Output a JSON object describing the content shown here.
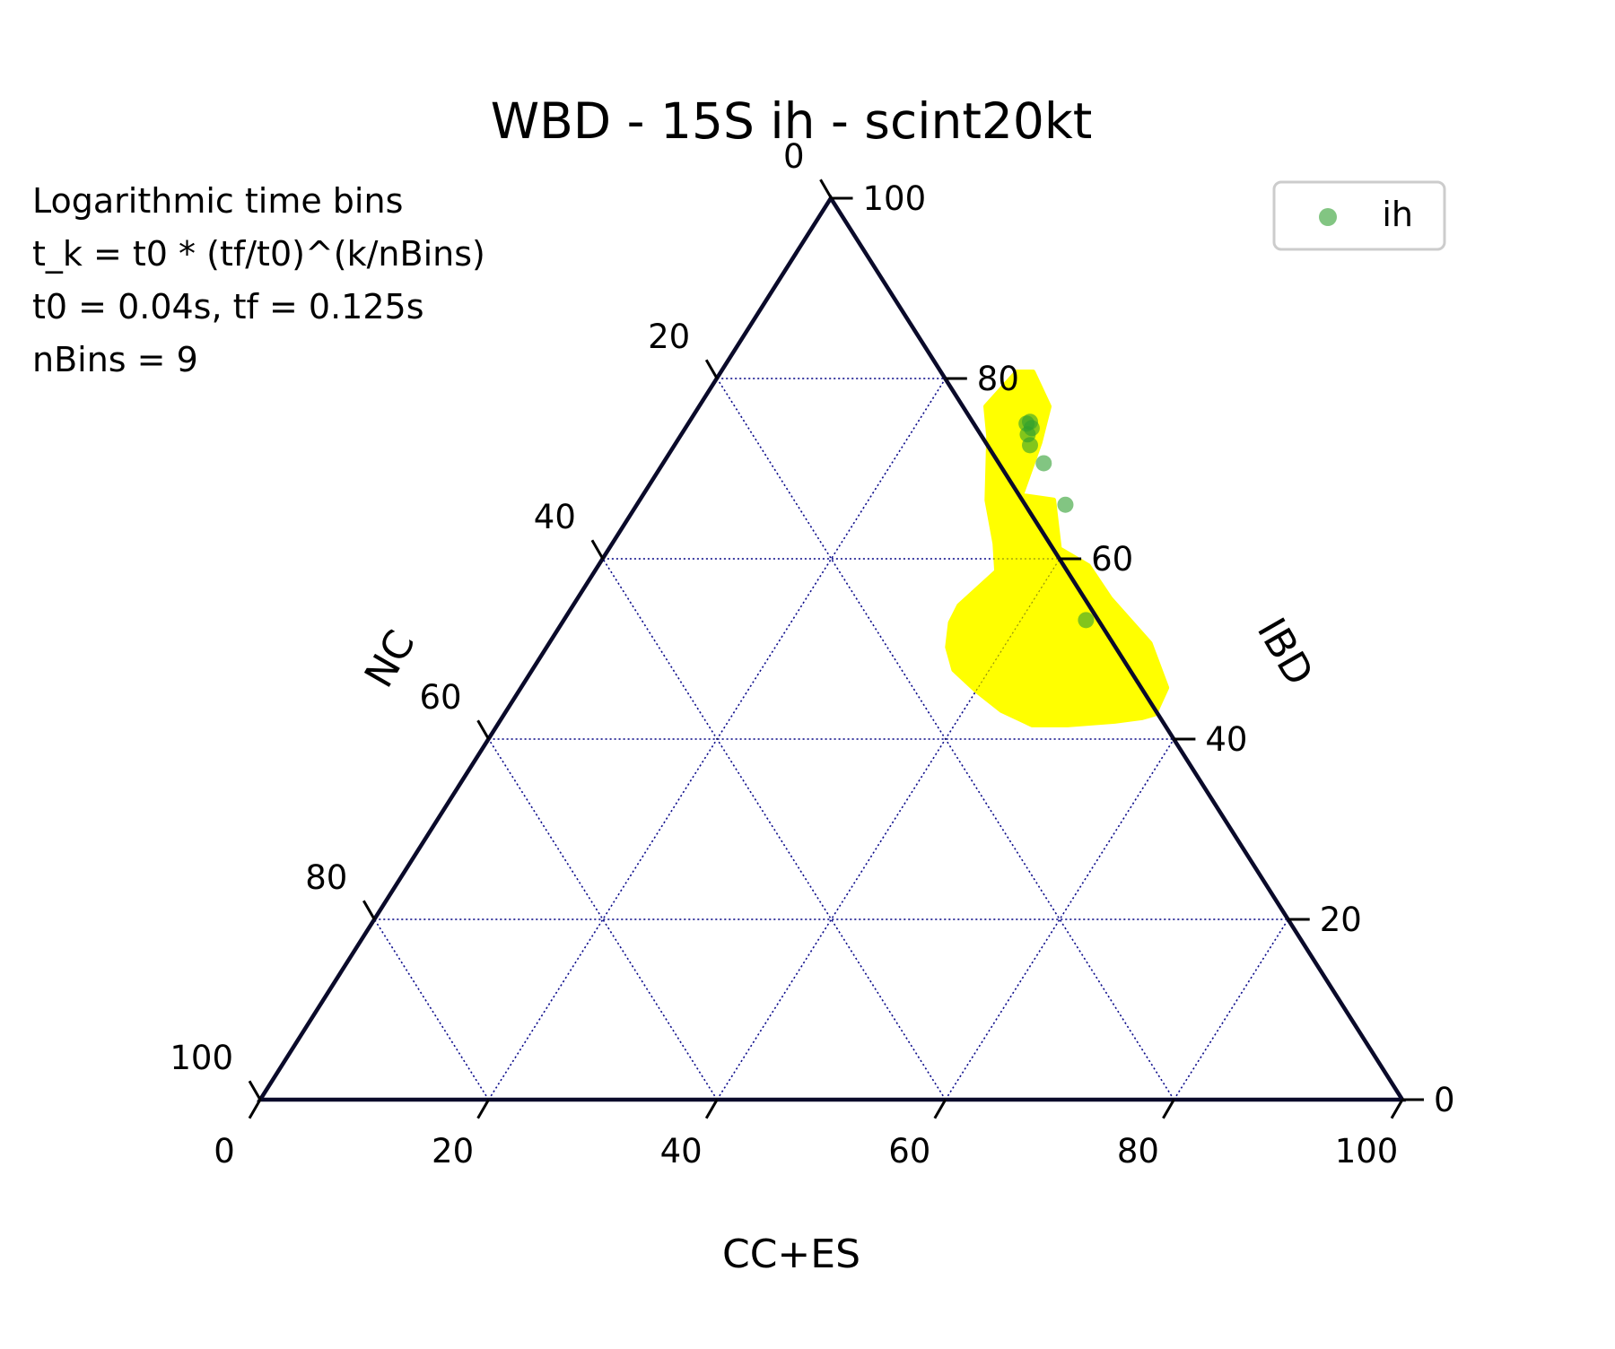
{
  "chart_data": {
    "type": "scatter",
    "subtype": "ternary",
    "title": "WBD - 15S ih - scint20kt",
    "axes": {
      "bottom": {
        "label": "CC+ES",
        "ticks": [
          "0",
          "20",
          "40",
          "60",
          "80",
          "100"
        ]
      },
      "right": {
        "label": "IBD",
        "ticks": [
          "0",
          "20",
          "40",
          "60",
          "80",
          "100"
        ]
      },
      "left": {
        "label": "NC",
        "ticks": [
          "0",
          "20",
          "40",
          "60",
          "80",
          "100"
        ]
      },
      "range": [
        0,
        100
      ]
    },
    "grid": true,
    "grid_step": 20,
    "colors": {
      "triangle": "#0a0a2a",
      "grid": "#0000cc",
      "region": "#ffff00",
      "points": "#2e9e2e"
    },
    "annotation": {
      "lines": [
        "Logarithmic time bins",
        "t_k = t0 * (tf/t0)^(k/nBins)",
        "t0 = 0.04s, tf = 0.125s",
        "nBins = 9"
      ]
    },
    "legend": {
      "position": "top-right",
      "entries": [
        {
          "name": "ih",
          "color": "#2e9e2e"
        }
      ]
    },
    "series": [
      {
        "name": "ih",
        "marker": "circle",
        "points": [
          {
            "cc_es": 29.6,
            "ibd": 75.0,
            "nc": -4.6
          },
          {
            "cc_es": 29.8,
            "ibd": 75.2,
            "nc": -5.0
          },
          {
            "cc_es": 30.3,
            "ibd": 74.5,
            "nc": -4.8
          },
          {
            "cc_es": 30.3,
            "ibd": 73.8,
            "nc": -4.1
          },
          {
            "cc_es": 31.1,
            "ibd": 72.6,
            "nc": -3.7
          },
          {
            "cc_es": 33.3,
            "ibd": 70.6,
            "nc": -3.9
          },
          {
            "cc_es": 37.5,
            "ibd": 66.0,
            "nc": -3.5
          },
          {
            "cc_es": 45.7,
            "ibd": 53.2,
            "nc": 1.1
          }
        ]
      }
    ],
    "region": {
      "name": "confidence region",
      "color": "#ffff00",
      "boundary": [
        {
          "cc_es": 25.9,
          "ibd": 80.7
        },
        {
          "cc_es": 27.3,
          "ibd": 80.7
        },
        {
          "cc_es": 30.6,
          "ibd": 76.9
        },
        {
          "cc_es": 31.8,
          "ibd": 72.9
        },
        {
          "cc_es": 33.1,
          "ibd": 67.0
        },
        {
          "cc_es": 36.2,
          "ibd": 66.5
        },
        {
          "cc_es": 39.4,
          "ibd": 61.1
        },
        {
          "cc_es": 42.9,
          "ibd": 59.2
        },
        {
          "cc_es": 46.6,
          "ibd": 55.6
        },
        {
          "cc_es": 52.6,
          "ibd": 50.6
        },
        {
          "cc_es": 56.5,
          "ibd": 45.7
        },
        {
          "cc_es": 56.9,
          "ibd": 42.8
        },
        {
          "cc_es": 56.0,
          "ibd": 42.4
        },
        {
          "cc_es": 53.8,
          "ibd": 42.0
        },
        {
          "cc_es": 49.9,
          "ibd": 41.6
        },
        {
          "cc_es": 46.8,
          "ibd": 41.6
        },
        {
          "cc_es": 43.3,
          "ibd": 43.2
        },
        {
          "cc_es": 40.0,
          "ibd": 45.4
        },
        {
          "cc_es": 36.9,
          "ibd": 47.7
        },
        {
          "cc_es": 35.1,
          "ibd": 50.2
        },
        {
          "cc_es": 34.0,
          "ibd": 52.9
        },
        {
          "cc_es": 33.8,
          "ibd": 54.8
        },
        {
          "cc_es": 35.2,
          "ibd": 58.6
        },
        {
          "cc_es": 33.5,
          "ibd": 61.7
        },
        {
          "cc_es": 30.4,
          "ibd": 66.5
        },
        {
          "cc_es": 27.0,
          "ibd": 73.6
        },
        {
          "cc_es": 25.1,
          "ibd": 76.9
        }
      ]
    }
  }
}
